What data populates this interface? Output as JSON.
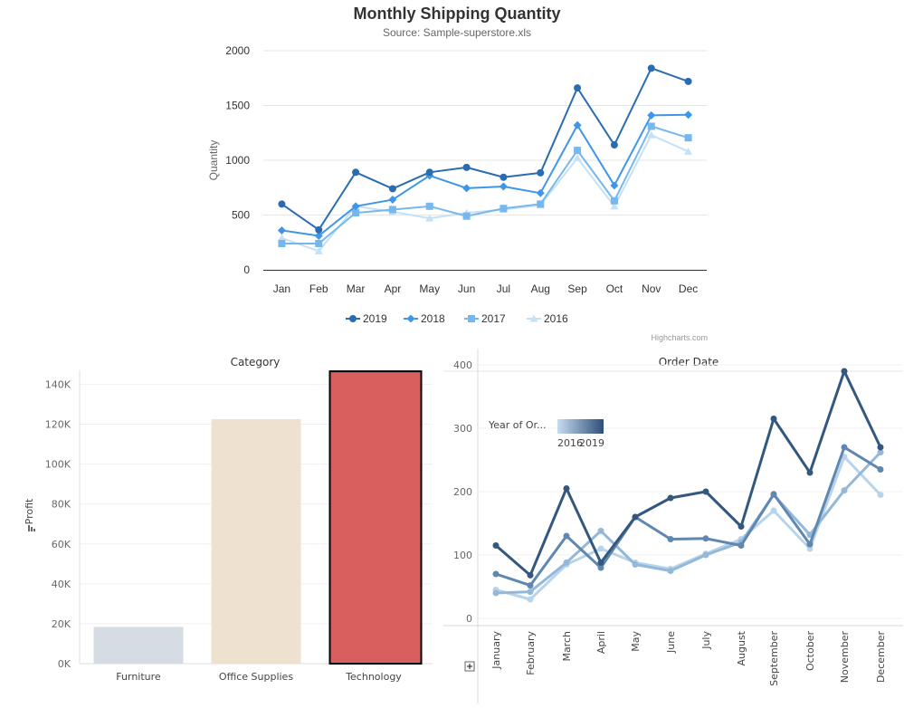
{
  "chart_data": [
    {
      "type": "line",
      "title": "Monthly Shipping Quantity",
      "subtitle": "Source: Sample-superstore.xls",
      "ylabel": "Quantity",
      "ylim": [
        0,
        2000
      ],
      "yticks": [
        0,
        500,
        1000,
        1500,
        2000
      ],
      "categories": [
        "Jan",
        "Feb",
        "Mar",
        "Apr",
        "May",
        "Jun",
        "Jul",
        "Aug",
        "Sep",
        "Oct",
        "Nov",
        "Dec"
      ],
      "series": [
        {
          "name": "2019",
          "color": "#2b6cb0",
          "marker": "circle",
          "values": [
            600,
            365,
            890,
            740,
            890,
            935,
            845,
            885,
            1660,
            1140,
            1840,
            1720
          ]
        },
        {
          "name": "2018",
          "color": "#3f96e6",
          "marker": "diamond",
          "values": [
            360,
            310,
            580,
            640,
            860,
            745,
            760,
            700,
            1320,
            770,
            1410,
            1415
          ]
        },
        {
          "name": "2017",
          "color": "#76b8ee",
          "marker": "square",
          "values": [
            240,
            240,
            520,
            550,
            580,
            490,
            560,
            600,
            1090,
            630,
            1310,
            1205
          ]
        },
        {
          "name": "2016",
          "color": "#c6e1f5",
          "marker": "triangle",
          "values": [
            290,
            170,
            580,
            530,
            470,
            520,
            550,
            590,
            1020,
            580,
            1230,
            1080
          ]
        }
      ],
      "legend": "bottom-center",
      "credit": "Highcharts.com"
    },
    {
      "type": "bar",
      "header": "Category",
      "ylabel": "Profit",
      "ylim": [
        0,
        147000
      ],
      "yticks": [
        {
          "v": 0,
          "label": "0K"
        },
        {
          "v": 20000,
          "label": "20K"
        },
        {
          "v": 40000,
          "label": "40K"
        },
        {
          "v": 60000,
          "label": "60K"
        },
        {
          "v": 80000,
          "label": "80K"
        },
        {
          "v": 100000,
          "label": "100K"
        },
        {
          "v": 120000,
          "label": "120K"
        },
        {
          "v": 140000,
          "label": "140K"
        }
      ],
      "categories": [
        "Furniture",
        "Office Supplies",
        "Technology"
      ],
      "values": [
        18400,
        122500,
        146500
      ],
      "colors": [
        "#d5dce4",
        "#efe1cf",
        "#d95f5e"
      ],
      "selected": "Technology"
    },
    {
      "type": "line",
      "header": "Order Date",
      "ylim": [
        0,
        400
      ],
      "yticks": [
        0,
        100,
        200,
        300,
        400
      ],
      "categories": [
        "January",
        "February",
        "March",
        "April",
        "May",
        "June",
        "July",
        "August",
        "September",
        "October",
        "November",
        "December"
      ],
      "legend_title": "Year of Or...",
      "legend_min": "2016",
      "legend_max": "2019",
      "series": [
        {
          "year": "2016",
          "color": "#b7d4ea",
          "values": [
            45,
            30,
            85,
            110,
            88,
            78,
            102,
            125,
            170,
            110,
            255,
            195
          ]
        },
        {
          "year": "2017",
          "color": "#94b8d8",
          "values": [
            40,
            42,
            88,
            138,
            85,
            75,
            100,
            120,
            195,
            132,
            202,
            262
          ]
        },
        {
          "year": "2018",
          "color": "#5f87b0",
          "values": [
            70,
            52,
            130,
            80,
            160,
            125,
            126,
            115,
            196,
            117,
            270,
            235
          ]
        },
        {
          "year": "2019",
          "color": "#34577e",
          "values": [
            115,
            68,
            205,
            88,
            160,
            190,
            200,
            145,
            315,
            230,
            390,
            270
          ]
        }
      ]
    }
  ]
}
